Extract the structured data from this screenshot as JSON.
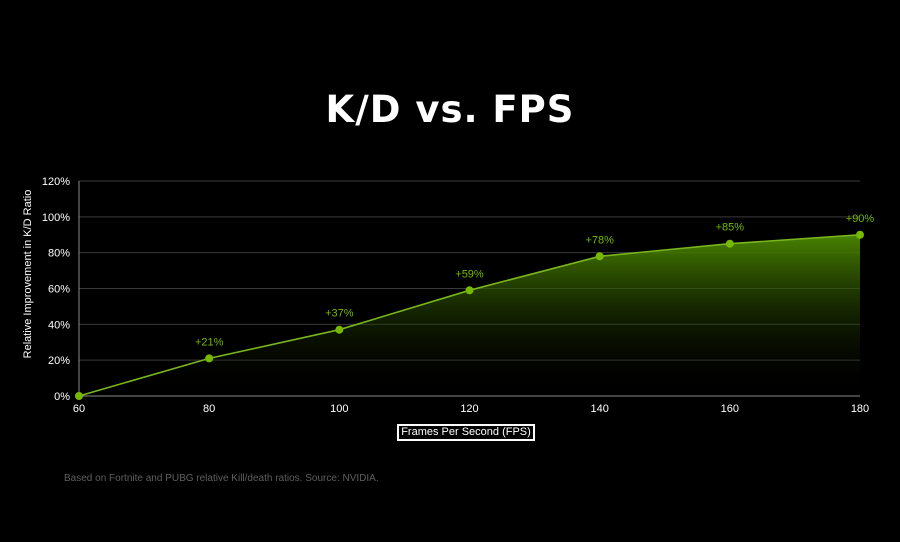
{
  "chart_data": {
    "type": "area",
    "title": "K/D vs. FPS",
    "xlabel": "Frames Per Second (FPS)",
    "ylabel": "Relative Improvement in K/D Ratio",
    "x": [
      60,
      80,
      100,
      120,
      140,
      160,
      180
    ],
    "xticks": [
      "60",
      "80",
      "100",
      "120",
      "140",
      "160",
      "180"
    ],
    "yticks": [
      "0%",
      "20%",
      "40%",
      "60%",
      "80%",
      "100%",
      "120%"
    ],
    "xlim": [
      60,
      180
    ],
    "ylim": [
      0,
      120
    ],
    "grid": true,
    "series": [
      {
        "values": [
          0,
          21,
          37,
          59,
          78,
          85,
          90
        ],
        "labels": [
          "",
          "+21%",
          "+37%",
          "+59%",
          "+78%",
          "+85%",
          "+90%"
        ]
      }
    ],
    "colors": {
      "line": "#7ab51d",
      "point": "#76b900",
      "data_label": "#76b900",
      "fill_top": "#4d8a00",
      "grid": "#3a3a3a"
    }
  },
  "footer": {
    "source": "Based on Fortnite and PUBG relative Kill/death ratios. Source: NVIDIA."
  }
}
